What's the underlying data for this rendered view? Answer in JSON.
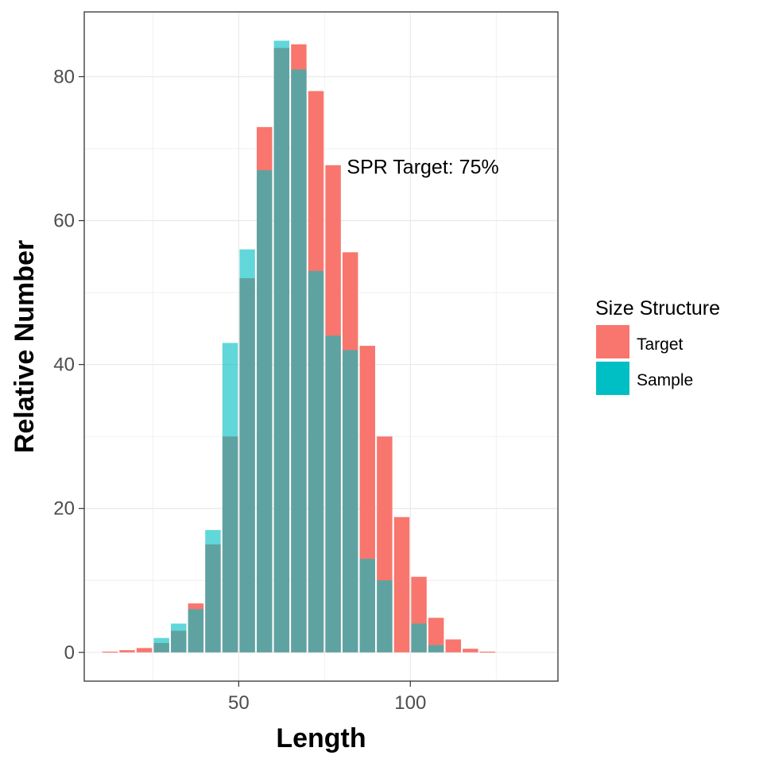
{
  "chart_data": {
    "type": "bar",
    "title": "",
    "xlabel": "Length",
    "ylabel": "Relative Number",
    "xlim": [
      5,
      143
    ],
    "ylim": [
      -4,
      89
    ],
    "bin_width": 5,
    "x_ticks": [
      50,
      100
    ],
    "y_ticks": [
      0,
      20,
      40,
      60,
      80
    ],
    "grid": true,
    "legend": {
      "title": "Size Structure",
      "position": "right",
      "entries": [
        {
          "name": "Target",
          "color": "#F8766D"
        },
        {
          "name": "Sample",
          "color": "#00BFC4"
        }
      ]
    },
    "annotations": [
      {
        "text": "SPR Target: 75%",
        "x": 81.5,
        "y": 67.5
      }
    ],
    "x": [
      12.5,
      17.5,
      22.5,
      27.5,
      32.5,
      37.5,
      42.5,
      47.5,
      52.5,
      57.5,
      62.5,
      67.5,
      72.5,
      77.5,
      82.5,
      87.5,
      92.5,
      97.5,
      102.5,
      107.5,
      112.5,
      117.5,
      122.5
    ],
    "series": [
      {
        "name": "Target",
        "color": "#F8766D",
        "values": [
          0.1,
          0.3,
          0.6,
          1.3,
          3.0,
          6.8,
          15.0,
          30.0,
          52.0,
          73.0,
          84.0,
          84.5,
          78.0,
          67.7,
          55.6,
          42.6,
          30.0,
          18.8,
          10.5,
          4.8,
          1.8,
          0.5,
          0.1
        ]
      },
      {
        "name": "Sample",
        "color": "#00BFC4",
        "values": [
          0.0,
          0.0,
          0.0,
          2.0,
          4.0,
          6.0,
          17.0,
          43.0,
          56.0,
          67.0,
          85.0,
          81.0,
          53.0,
          44.0,
          42.0,
          13.0,
          10.0,
          0.0,
          4.0,
          1.0,
          0.0,
          0.0,
          0.0
        ]
      }
    ]
  }
}
